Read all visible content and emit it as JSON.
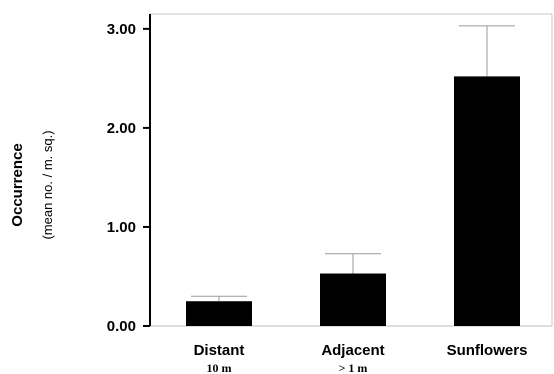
{
  "chart_data": {
    "type": "bar",
    "categories": [
      "Distant",
      "Adjacent",
      "Sunflowers"
    ],
    "category_sublabels": [
      "10 m",
      "> 1 m",
      ""
    ],
    "values": [
      0.25,
      0.53,
      2.52
    ],
    "error_upper": [
      0.3,
      0.73,
      3.03
    ],
    "yticks": [
      "0.00",
      "1.00",
      "2.00",
      "3.00"
    ],
    "ylim": [
      0,
      3.15
    ],
    "ylabel": "Occurrence",
    "ylabel_sub": "(mean no. / m. sq.)",
    "xlabel": "",
    "title": "",
    "bar_color": "#000000",
    "grid": false
  }
}
